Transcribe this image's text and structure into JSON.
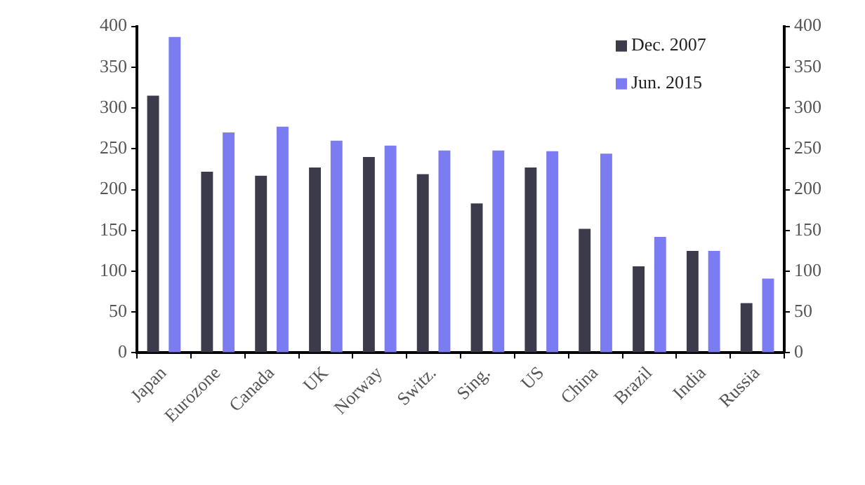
{
  "chart_data": {
    "type": "bar",
    "categories": [
      "Japan",
      "Eurozone",
      "Canada",
      "UK",
      "Norway",
      "Switz.",
      "Sing.",
      "US",
      "China",
      "Brazil",
      "India",
      "Russia"
    ],
    "series": [
      {
        "name": "Dec. 2007",
        "color": "#3b3b4c",
        "values": [
          315,
          222,
          217,
          227,
          240,
          219,
          183,
          227,
          152,
          106,
          125,
          61
        ]
      },
      {
        "name": "Jun. 2015",
        "color": "#7b7bf2",
        "values": [
          387,
          270,
          277,
          260,
          254,
          248,
          248,
          247,
          244,
          142,
          125,
          91
        ]
      }
    ],
    "ylim": [
      0,
      400
    ],
    "yticks": [
      0,
      50,
      100,
      150,
      200,
      250,
      300,
      350,
      400
    ],
    "y2lim": [
      0,
      400
    ],
    "y2ticks": [
      0,
      50,
      100,
      150,
      200,
      250,
      300,
      350,
      400
    ],
    "legend": "top right"
  }
}
